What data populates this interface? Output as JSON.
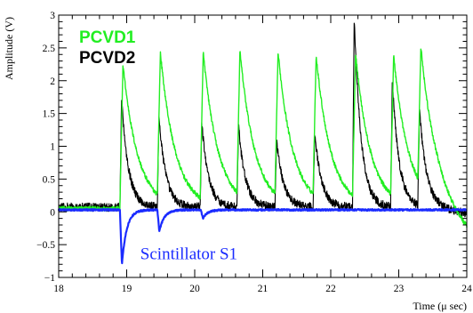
{
  "chart_data": {
    "type": "line",
    "title": "",
    "xlabel": "Time (μ sec)",
    "ylabel": "Amplitude (V)",
    "xlim": [
      18,
      24
    ],
    "ylim": [
      -1,
      3
    ],
    "x_ticks": [
      18,
      19,
      20,
      21,
      22,
      23,
      24
    ],
    "x_tick_labels": [
      "18",
      "19",
      "20",
      "21",
      "22",
      "23",
      "24"
    ],
    "y_ticks": [
      -1,
      -0.5,
      0,
      0.5,
      1,
      1.5,
      2,
      2.5,
      3
    ],
    "y_tick_labels": [
      "−1",
      "−0.5",
      "0",
      "0.5",
      "1",
      "1.5",
      "2",
      "2.5",
      "3"
    ],
    "grid": false,
    "legend": {
      "placement": "top-left"
    },
    "pulse_start_times": [
      18.9,
      19.45,
      20.08,
      20.62,
      21.18,
      21.74,
      22.32,
      22.88,
      23.28
    ],
    "series": [
      {
        "name": "PCVD1",
        "color": "#22ee22",
        "baseline": 0.05,
        "peaks": [
          2.25,
          2.25,
          2.3,
          2.25,
          2.25,
          2.2,
          2.25,
          2.2,
          2.15
        ]
      },
      {
        "name": "PCVD2",
        "color": "#000000",
        "baseline": 0.07,
        "peaks": [
          1.75,
          1.45,
          1.35,
          1.3,
          1.1,
          1.2,
          3.0,
          2.0,
          1.55
        ]
      },
      {
        "name": "Scintillator S1",
        "color": "#1a2bff",
        "baseline": 0.03,
        "dips": [
          {
            "x": 18.93,
            "y": -0.8
          },
          {
            "x": 19.48,
            "y": -0.3
          },
          {
            "x": 20.12,
            "y": -0.1
          }
        ]
      }
    ],
    "annotations": [
      {
        "text": "Scintillator S1",
        "x": 19.2,
        "y": -0.72,
        "color": "#1a2bff"
      }
    ]
  }
}
